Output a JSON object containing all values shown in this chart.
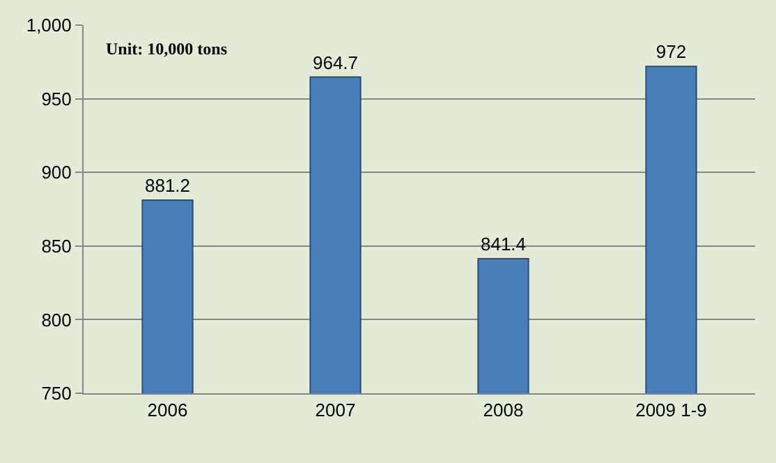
{
  "chart_data": {
    "type": "bar",
    "categories": [
      "2006",
      "2007",
      "2008",
      "2009 1-9"
    ],
    "values": [
      881.2,
      964.7,
      841.4,
      972
    ],
    "color": "#4a7ebb",
    "ylim": [
      750,
      1000
    ],
    "yticks": [
      750,
      800,
      850,
      900,
      950,
      {
        "value": 1000,
        "label": "1,000"
      }
    ],
    "grid": "y",
    "data_labels": true,
    "annotations": [
      "Unit: 10,000 tons"
    ]
  }
}
